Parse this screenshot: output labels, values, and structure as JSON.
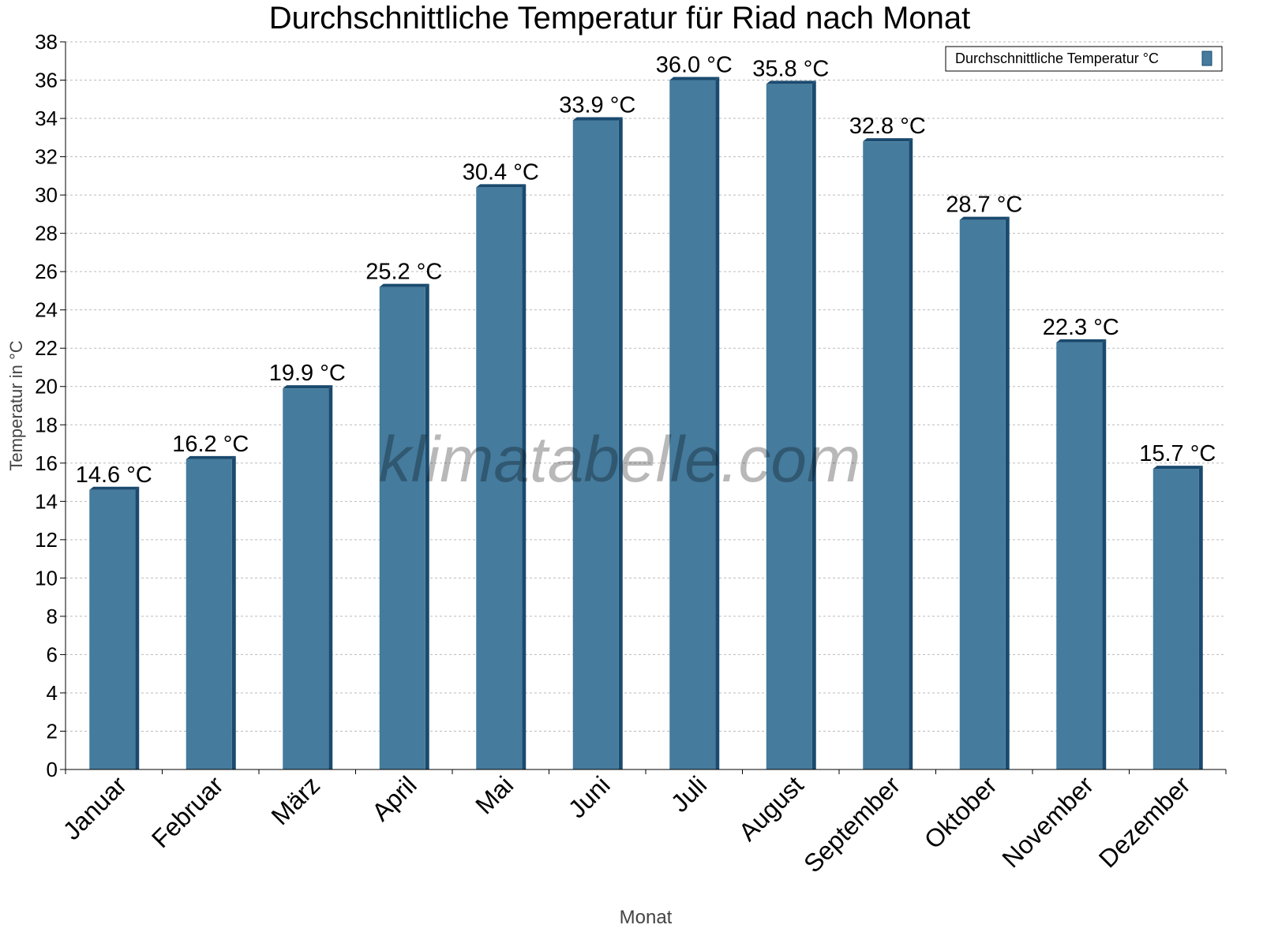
{
  "chart_data": {
    "type": "bar",
    "title": "Durchschnittliche Temperatur für Riad nach Monat",
    "xlabel": "Monat",
    "ylabel": "Temperatur in °C",
    "categories": [
      "Januar",
      "Februar",
      "März",
      "April",
      "Mai",
      "Juni",
      "Juli",
      "August",
      "September",
      "Oktober",
      "November",
      "Dezember"
    ],
    "series": [
      {
        "name": "Durchschnittliche Temperatur °C",
        "values": [
          14.6,
          16.2,
          19.9,
          25.2,
          30.4,
          33.9,
          36.0,
          35.8,
          32.8,
          28.7,
          22.3,
          15.7
        ],
        "color": "#457b9d",
        "side_color": "#1a4a6e"
      }
    ],
    "value_suffix": " °C",
    "ylim": [
      0,
      38
    ],
    "ytick_step": 2,
    "grid": true,
    "legend_position": "top-right",
    "watermark": "klimatabelle.com"
  }
}
